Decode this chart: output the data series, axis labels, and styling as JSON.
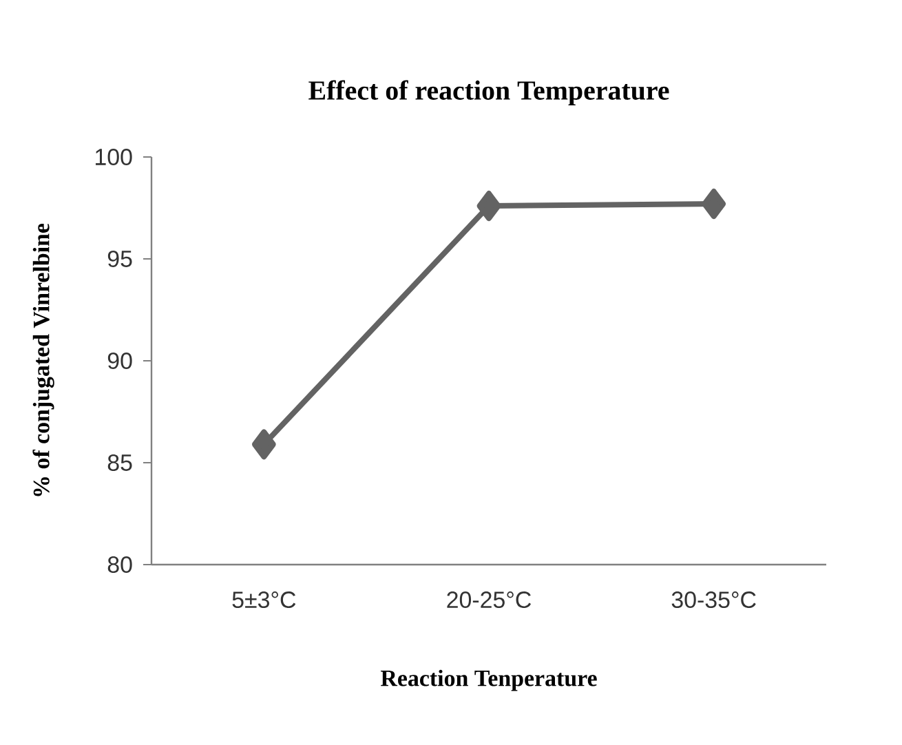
{
  "chart_data": {
    "type": "line",
    "title": "Effect of reaction Temperature",
    "xlabel": "Reaction Tenperature",
    "ylabel": "% of conjugated Vinrelbine",
    "categories": [
      "5±3°C",
      "20-25°C",
      "30-35°C"
    ],
    "series": [
      {
        "color": "#636363",
        "values": [
          85.9,
          97.6,
          97.7
        ]
      }
    ],
    "ylim": [
      80,
      100
    ],
    "yticks": [
      80,
      85,
      90,
      95,
      100
    ],
    "marker": "diamond",
    "line_style": "solid",
    "grid": false
  }
}
